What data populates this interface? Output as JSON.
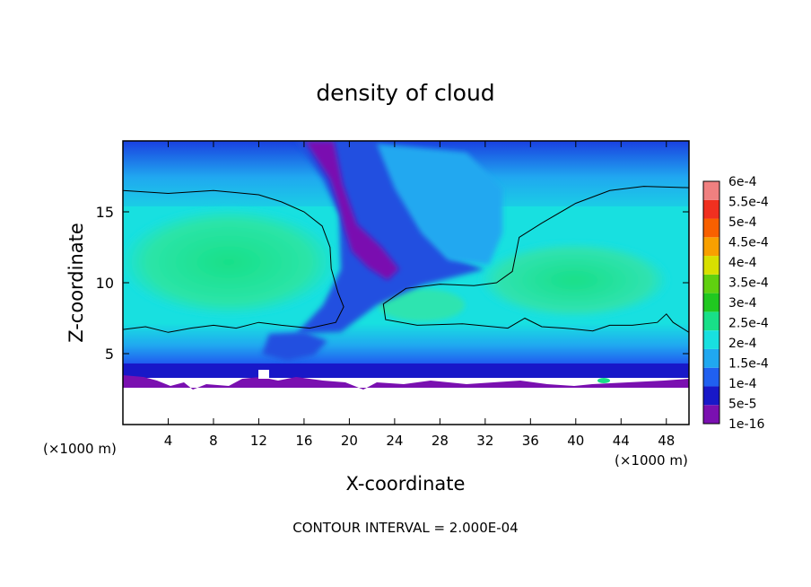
{
  "chart_data": {
    "type": "heatmap",
    "title": "density of cloud",
    "xlabel": "X-coordinate",
    "ylabel": "Z-coordinate",
    "x_unit": "(×1000 m)",
    "xlim": [
      0,
      50
    ],
    "ylim": [
      0,
      20
    ],
    "x_ticks": [
      4,
      8,
      12,
      16,
      20,
      24,
      28,
      32,
      36,
      40,
      44,
      48
    ],
    "y_ticks": [
      5,
      10,
      15
    ],
    "footer": "CONTOUR INTERVAL = 2.000E-04",
    "colorbar": {
      "labels": [
        "1e-16",
        "5e-5",
        "1e-4",
        "1.5e-4",
        "2e-4",
        "2.5e-4",
        "3e-4",
        "3.5e-4",
        "4e-4",
        "4.5e-4",
        "5e-4",
        "5.5e-4",
        "6e-4"
      ],
      "values": [
        1e-16,
        5e-05,
        0.0001,
        0.00015,
        0.0002,
        0.00025,
        0.0003,
        0.00035,
        0.0004,
        0.00045,
        0.0005,
        0.00055,
        0.0006
      ],
      "colors": [
        "#7a10b0",
        "#1818c8",
        "#2060f0",
        "#20a8f0",
        "#18e0e0",
        "#18e088",
        "#20c820",
        "#60d010",
        "#d8e000",
        "#f8a000",
        "#f86000",
        "#f03020",
        "#f08080"
      ]
    },
    "cloud_base_z": 3.3,
    "contour_2e-4": {
      "left_lobe": [
        [
          0,
          16.5
        ],
        [
          4,
          16.3
        ],
        [
          8,
          16.5
        ],
        [
          12,
          16.2
        ],
        [
          14,
          15.7
        ],
        [
          16,
          15
        ],
        [
          17.6,
          14
        ],
        [
          18.3,
          12.5
        ],
        [
          18.4,
          11
        ],
        [
          19,
          9.3
        ],
        [
          19.5,
          8.3
        ],
        [
          18.8,
          7.2
        ],
        [
          16.5,
          6.8
        ],
        [
          14,
          7
        ],
        [
          12,
          7.2
        ],
        [
          10,
          6.8
        ],
        [
          8,
          7
        ],
        [
          6,
          6.8
        ],
        [
          4,
          6.5
        ],
        [
          2,
          6.9
        ],
        [
          0,
          6.7
        ]
      ],
      "right_lobe": [
        [
          50,
          16.7
        ],
        [
          46,
          16.8
        ],
        [
          43,
          16.5
        ],
        [
          40,
          15.6
        ],
        [
          37,
          14.2
        ],
        [
          35,
          13.2
        ],
        [
          34.7,
          12
        ],
        [
          34.4,
          10.8
        ],
        [
          33,
          10
        ],
        [
          31,
          9.8
        ],
        [
          28,
          9.9
        ],
        [
          25,
          9.6
        ],
        [
          23,
          8.5
        ],
        [
          23.2,
          7.4
        ],
        [
          26,
          7
        ],
        [
          30,
          7.1
        ],
        [
          34,
          6.8
        ],
        [
          35.5,
          7.5
        ],
        [
          37,
          6.9
        ],
        [
          39,
          6.8
        ],
        [
          41.5,
          6.6
        ],
        [
          43,
          7
        ],
        [
          45,
          7
        ],
        [
          47.2,
          7.2
        ],
        [
          48,
          7.8
        ],
        [
          48.6,
          7.2
        ],
        [
          50,
          6.5
        ]
      ]
    }
  }
}
